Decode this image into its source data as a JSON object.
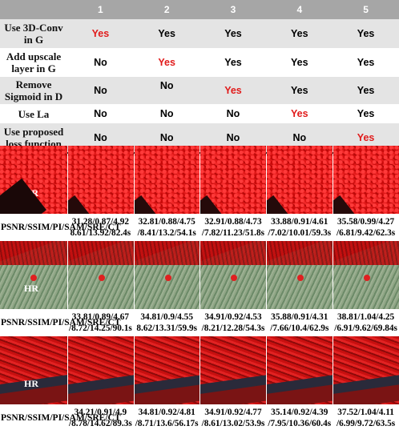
{
  "table": {
    "columns": [
      "",
      "1",
      "2",
      "3",
      "4",
      "5"
    ],
    "rows": [
      {
        "label": "Use 3D-Conv in G",
        "values": [
          "Yes",
          "Yes",
          "Yes",
          "Yes",
          "Yes"
        ],
        "red": [
          0
        ]
      },
      {
        "label": "Add upscale layer in G",
        "values": [
          "No",
          "Yes",
          "Yes",
          "Yes",
          "Yes"
        ],
        "red": [
          1
        ]
      },
      {
        "label": "Remove Sigmoid in D",
        "values": [
          "No",
          "No",
          "Yes",
          "Yes",
          "Yes"
        ],
        "red": [
          2
        ]
      },
      {
        "label": "Use La",
        "values": [
          "No",
          "No",
          "No",
          "Yes",
          "Yes"
        ],
        "red": [
          3
        ]
      },
      {
        "label": "Use proposed loss function",
        "values": [
          "No",
          "No",
          "No",
          "No",
          "Yes"
        ],
        "red": [
          4
        ]
      }
    ]
  },
  "image_label": "HR",
  "metrics_label": "PSNR/SSIM/PI/SAM/SRE/CT",
  "scenes": [
    {
      "values": [
        "31.28/0.87/4.92 8.61/13.92/82.4s",
        "32.81/0.88/4.75 /8.41/13.2/54.1s",
        "32.91/0.88/4.73 /7.82/11.23/51.8s",
        "33.88/0.91/4.61 /7.02/10.01/59.3s",
        "35.58/0.99/4.27 /6.81/9.42/62.3s"
      ]
    },
    {
      "values": [
        "33.81/0.89/4.67 /8.72/14.25/90.1s",
        "34.81/0.9/4.55 8.62/13.31/59.9s",
        "34.91/0.92/4.53 /8.21/12.28/54.3s",
        "35.88/0.91/4.31 /7.66/10.4/62.9s",
        "38.81/1.04/4.25 /6.91/9.62/69.84s"
      ]
    },
    {
      "values": [
        "34.21/0.91/4.9 /8.78/14.62/89.3s",
        "34.81/0.92/4.81 /8.71/13.6/56.17s",
        "34.91/0.92/4.77 /8.61/13.02/53.9s",
        "35.14/0.92/4.39 /7.95/10.36/60.4s",
        "37.52/1.04/4.11 /6.99/9.72/63.5s"
      ]
    }
  ]
}
